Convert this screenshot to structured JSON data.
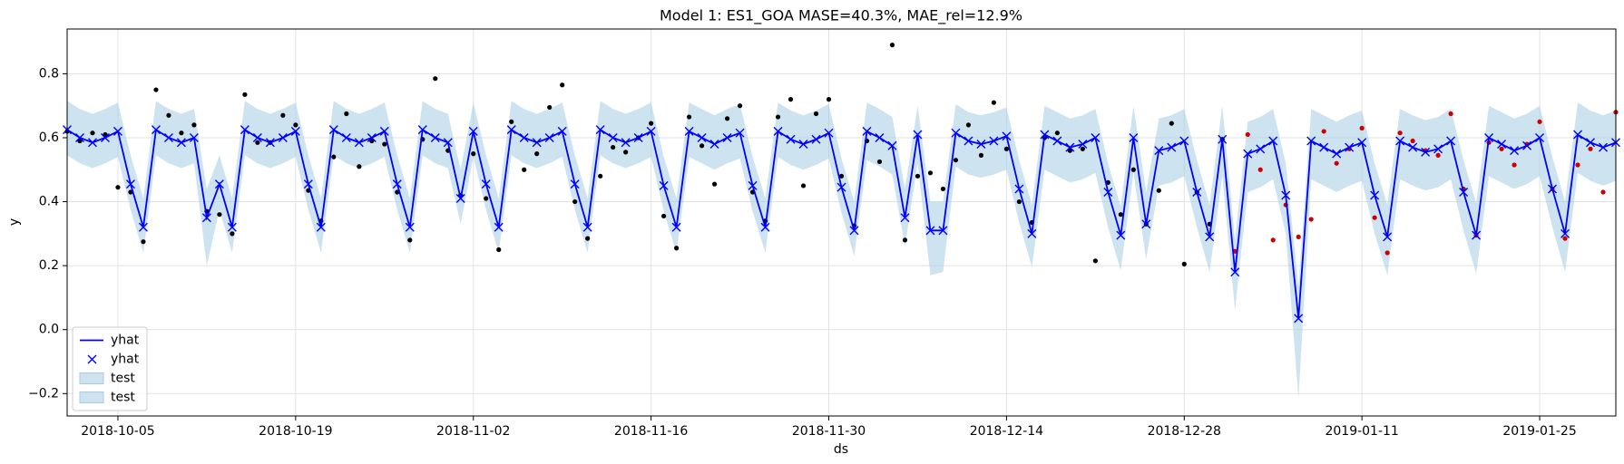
{
  "chart_data": {
    "type": "forecast",
    "title": "Model 1: ES1_GOA MASE=40.3%, MAE_rel=12.9%",
    "xlabel": "ds",
    "ylabel": "y",
    "x": [
      "2018-10-01",
      "2018-10-02",
      "2018-10-03",
      "2018-10-04",
      "2018-10-05",
      "2018-10-06",
      "2018-10-07",
      "2018-10-08",
      "2018-10-09",
      "2018-10-10",
      "2018-10-11",
      "2018-10-12",
      "2018-10-13",
      "2018-10-14",
      "2018-10-15",
      "2018-10-16",
      "2018-10-17",
      "2018-10-18",
      "2018-10-19",
      "2018-10-20",
      "2018-10-21",
      "2018-10-22",
      "2018-10-23",
      "2018-10-24",
      "2018-10-25",
      "2018-10-26",
      "2018-10-27",
      "2018-10-28",
      "2018-10-29",
      "2018-10-30",
      "2018-10-31",
      "2018-11-01",
      "2018-11-02",
      "2018-11-03",
      "2018-11-04",
      "2018-11-05",
      "2018-11-06",
      "2018-11-07",
      "2018-11-08",
      "2018-11-09",
      "2018-11-10",
      "2018-11-11",
      "2018-11-12",
      "2018-11-13",
      "2018-11-14",
      "2018-11-15",
      "2018-11-16",
      "2018-11-17",
      "2018-11-18",
      "2018-11-19",
      "2018-11-20",
      "2018-11-21",
      "2018-11-22",
      "2018-11-23",
      "2018-11-24",
      "2018-11-25",
      "2018-11-26",
      "2018-11-27",
      "2018-11-28",
      "2018-11-29",
      "2018-11-30",
      "2018-12-01",
      "2018-12-02",
      "2018-12-03",
      "2018-12-04",
      "2018-12-05",
      "2018-12-06",
      "2018-12-07",
      "2018-12-08",
      "2018-12-09",
      "2018-12-10",
      "2018-12-11",
      "2018-12-12",
      "2018-12-13",
      "2018-12-14",
      "2018-12-15",
      "2018-12-16",
      "2018-12-17",
      "2018-12-18",
      "2018-12-19",
      "2018-12-20",
      "2018-12-21",
      "2018-12-22",
      "2018-12-23",
      "2018-12-24",
      "2018-12-25",
      "2018-12-26",
      "2018-12-27",
      "2018-12-28",
      "2018-12-29",
      "2018-12-30",
      "2018-12-31",
      "2019-01-01",
      "2019-01-02",
      "2019-01-03",
      "2019-01-04",
      "2019-01-05",
      "2019-01-06",
      "2019-01-07",
      "2019-01-08",
      "2019-01-09",
      "2019-01-10",
      "2019-01-11",
      "2019-01-12",
      "2019-01-13",
      "2019-01-14",
      "2019-01-15",
      "2019-01-16",
      "2019-01-17",
      "2019-01-18",
      "2019-01-19",
      "2019-01-20",
      "2019-01-21",
      "2019-01-22",
      "2019-01-23",
      "2019-01-24",
      "2019-01-25",
      "2019-01-26",
      "2019-01-27",
      "2019-01-28",
      "2019-01-29",
      "2019-01-30",
      "2019-01-31"
    ],
    "yhat": {
      "color": "#0000ff",
      "values": [
        0.625,
        0.6,
        0.585,
        0.6,
        0.62,
        0.455,
        0.32,
        0.625,
        0.6,
        0.585,
        0.6,
        0.35,
        0.455,
        0.32,
        0.625,
        0.6,
        0.585,
        0.6,
        0.62,
        0.455,
        0.32,
        0.625,
        0.6,
        0.585,
        0.6,
        0.62,
        0.455,
        0.32,
        0.625,
        0.6,
        0.585,
        0.41,
        0.62,
        0.455,
        0.32,
        0.625,
        0.6,
        0.585,
        0.6,
        0.62,
        0.455,
        0.32,
        0.625,
        0.6,
        0.585,
        0.6,
        0.62,
        0.45,
        0.32,
        0.62,
        0.6,
        0.58,
        0.6,
        0.615,
        0.45,
        0.32,
        0.62,
        0.595,
        0.58,
        0.595,
        0.615,
        0.445,
        0.31,
        0.62,
        0.6,
        0.575,
        0.35,
        0.61,
        0.31,
        0.31,
        0.615,
        0.59,
        0.58,
        0.59,
        0.605,
        0.44,
        0.3,
        0.61,
        0.59,
        0.57,
        0.58,
        0.6,
        0.43,
        0.295,
        0.6,
        0.33,
        0.56,
        0.57,
        0.59,
        0.43,
        0.29,
        0.595,
        0.18,
        0.55,
        0.565,
        0.59,
        0.42,
        0.035,
        0.59,
        0.57,
        0.55,
        0.57,
        0.585,
        0.42,
        0.29,
        0.59,
        0.57,
        0.555,
        0.565,
        0.59,
        0.43,
        0.295,
        0.6,
        0.58,
        0.56,
        0.575,
        0.6,
        0.44,
        0.3,
        0.61,
        0.585,
        0.57,
        0.585
      ]
    },
    "band": {
      "color": "#a6cce3",
      "upper": [
        0.715,
        0.69,
        0.675,
        0.69,
        0.71,
        0.545,
        0.41,
        0.715,
        0.69,
        0.675,
        0.69,
        0.44,
        0.545,
        0.41,
        0.715,
        0.69,
        0.675,
        0.69,
        0.71,
        0.545,
        0.41,
        0.715,
        0.69,
        0.675,
        0.69,
        0.71,
        0.545,
        0.41,
        0.715,
        0.69,
        0.675,
        0.5,
        0.71,
        0.545,
        0.41,
        0.715,
        0.69,
        0.675,
        0.69,
        0.71,
        0.545,
        0.41,
        0.715,
        0.69,
        0.675,
        0.69,
        0.71,
        0.54,
        0.41,
        0.71,
        0.69,
        0.67,
        0.69,
        0.705,
        0.54,
        0.41,
        0.71,
        0.685,
        0.67,
        0.685,
        0.705,
        0.535,
        0.4,
        0.71,
        0.69,
        0.665,
        0.44,
        0.7,
        0.4,
        0.4,
        0.705,
        0.68,
        0.67,
        0.68,
        0.695,
        0.53,
        0.39,
        0.7,
        0.68,
        0.66,
        0.67,
        0.69,
        0.52,
        0.385,
        0.7,
        0.43,
        0.66,
        0.67,
        0.69,
        0.53,
        0.39,
        0.7,
        0.28,
        0.65,
        0.665,
        0.69,
        0.52,
        0.135,
        0.69,
        0.67,
        0.65,
        0.67,
        0.685,
        0.52,
        0.39,
        0.69,
        0.67,
        0.655,
        0.665,
        0.69,
        0.53,
        0.395,
        0.7,
        0.68,
        0.66,
        0.675,
        0.7,
        0.54,
        0.4,
        0.71,
        0.685,
        0.67,
        0.685
      ],
      "lower": [
        0.545,
        0.52,
        0.505,
        0.52,
        0.54,
        0.375,
        0.24,
        0.545,
        0.52,
        0.505,
        0.52,
        0.2,
        0.375,
        0.24,
        0.545,
        0.52,
        0.505,
        0.52,
        0.54,
        0.375,
        0.24,
        0.545,
        0.52,
        0.505,
        0.52,
        0.54,
        0.375,
        0.24,
        0.545,
        0.52,
        0.505,
        0.33,
        0.54,
        0.375,
        0.24,
        0.545,
        0.52,
        0.505,
        0.52,
        0.54,
        0.375,
        0.24,
        0.545,
        0.52,
        0.505,
        0.52,
        0.54,
        0.37,
        0.24,
        0.54,
        0.52,
        0.5,
        0.52,
        0.535,
        0.37,
        0.24,
        0.54,
        0.515,
        0.5,
        0.515,
        0.535,
        0.365,
        0.23,
        0.53,
        0.51,
        0.485,
        0.26,
        0.52,
        0.17,
        0.18,
        0.51,
        0.485,
        0.475,
        0.485,
        0.5,
        0.335,
        0.195,
        0.5,
        0.48,
        0.46,
        0.47,
        0.49,
        0.32,
        0.185,
        0.49,
        0.22,
        0.45,
        0.46,
        0.48,
        0.32,
        0.18,
        0.48,
        0.06,
        0.43,
        0.445,
        0.47,
        0.3,
        -0.215,
        0.47,
        0.45,
        0.43,
        0.45,
        0.465,
        0.3,
        0.17,
        0.47,
        0.45,
        0.435,
        0.445,
        0.47,
        0.31,
        0.175,
        0.48,
        0.46,
        0.44,
        0.455,
        0.48,
        0.32,
        0.18,
        0.49,
        0.465,
        0.45,
        0.465
      ]
    },
    "train_points": {
      "color": "#000000",
      "values": [
        0.62,
        0.59,
        0.615,
        0.61,
        0.445,
        0.43,
        0.275,
        0.75,
        0.67,
        0.615,
        0.64,
        0.37,
        0.36,
        0.3,
        0.735,
        0.585,
        0.585,
        0.67,
        0.64,
        0.435,
        0.34,
        0.54,
        0.675,
        0.51,
        0.59,
        0.58,
        0.43,
        0.28,
        0.595,
        0.785,
        0.56,
        0.42,
        0.55,
        0.41,
        0.25,
        0.65,
        0.5,
        0.55,
        0.695,
        0.765,
        0.4,
        0.285,
        0.48,
        0.57,
        0.555,
        0.6,
        0.645,
        0.355,
        0.255,
        0.665,
        0.575,
        0.455,
        0.66,
        0.7,
        0.43,
        0.34,
        0.665,
        0.72,
        0.45,
        0.675,
        0.72,
        0.48,
        0.325,
        0.59,
        0.525,
        0.89,
        0.28,
        0.48,
        0.49,
        0.44,
        0.53,
        0.64,
        0.545,
        0.71,
        0.565,
        0.4,
        0.335,
        0.6,
        0.615,
        0.56,
        0.565,
        0.215,
        0.46,
        0.36,
        0.5,
        0.33,
        0.435,
        0.645,
        0.205,
        0.43,
        0.33,
        0.595,
        null,
        null,
        null,
        null,
        null,
        null,
        null,
        null,
        null,
        null,
        null,
        null,
        null,
        null,
        null,
        null,
        null,
        null,
        null,
        null,
        null,
        null,
        null,
        null,
        null,
        null,
        null,
        null,
        null,
        null,
        null
      ]
    },
    "test_points": {
      "color": "#cc0000",
      "values": [
        null,
        null,
        null,
        null,
        null,
        null,
        null,
        null,
        null,
        null,
        null,
        null,
        null,
        null,
        null,
        null,
        null,
        null,
        null,
        null,
        null,
        null,
        null,
        null,
        null,
        null,
        null,
        null,
        null,
        null,
        null,
        null,
        null,
        null,
        null,
        null,
        null,
        null,
        null,
        null,
        null,
        null,
        null,
        null,
        null,
        null,
        null,
        null,
        null,
        null,
        null,
        null,
        null,
        null,
        null,
        null,
        null,
        null,
        null,
        null,
        null,
        null,
        null,
        null,
        null,
        null,
        null,
        null,
        null,
        null,
        null,
        null,
        null,
        null,
        null,
        null,
        null,
        null,
        null,
        null,
        null,
        null,
        null,
        null,
        null,
        null,
        null,
        null,
        null,
        null,
        null,
        null,
        0.245,
        0.61,
        0.5,
        0.28,
        0.39,
        0.29,
        0.345,
        0.62,
        0.52,
        0.565,
        0.63,
        0.35,
        0.24,
        0.615,
        0.59,
        0.56,
        0.545,
        0.675,
        0.44,
        0.295,
        0.585,
        0.565,
        0.515,
        0.58,
        0.65,
        0.44,
        0.285,
        0.515,
        0.565,
        0.43,
        0.68
      ]
    },
    "xlim": [
      "2018-10-01",
      "2019-01-31"
    ],
    "xticks": [
      "2018-10-05",
      "2018-10-19",
      "2018-11-02",
      "2018-11-16",
      "2018-11-30",
      "2018-12-14",
      "2018-12-28",
      "2019-01-11",
      "2019-01-25"
    ],
    "ylim": [
      -0.27,
      0.94
    ],
    "yticks": [
      {
        "value": -0.2,
        "label": "−0.2"
      },
      {
        "value": 0,
        "label": "0.0"
      },
      0.2,
      0.4,
      0.6,
      0.8
    ],
    "grid": true,
    "legend": {
      "loc": "lower left",
      "entries": [
        "yhat",
        "yhat",
        "test",
        "test"
      ]
    }
  }
}
